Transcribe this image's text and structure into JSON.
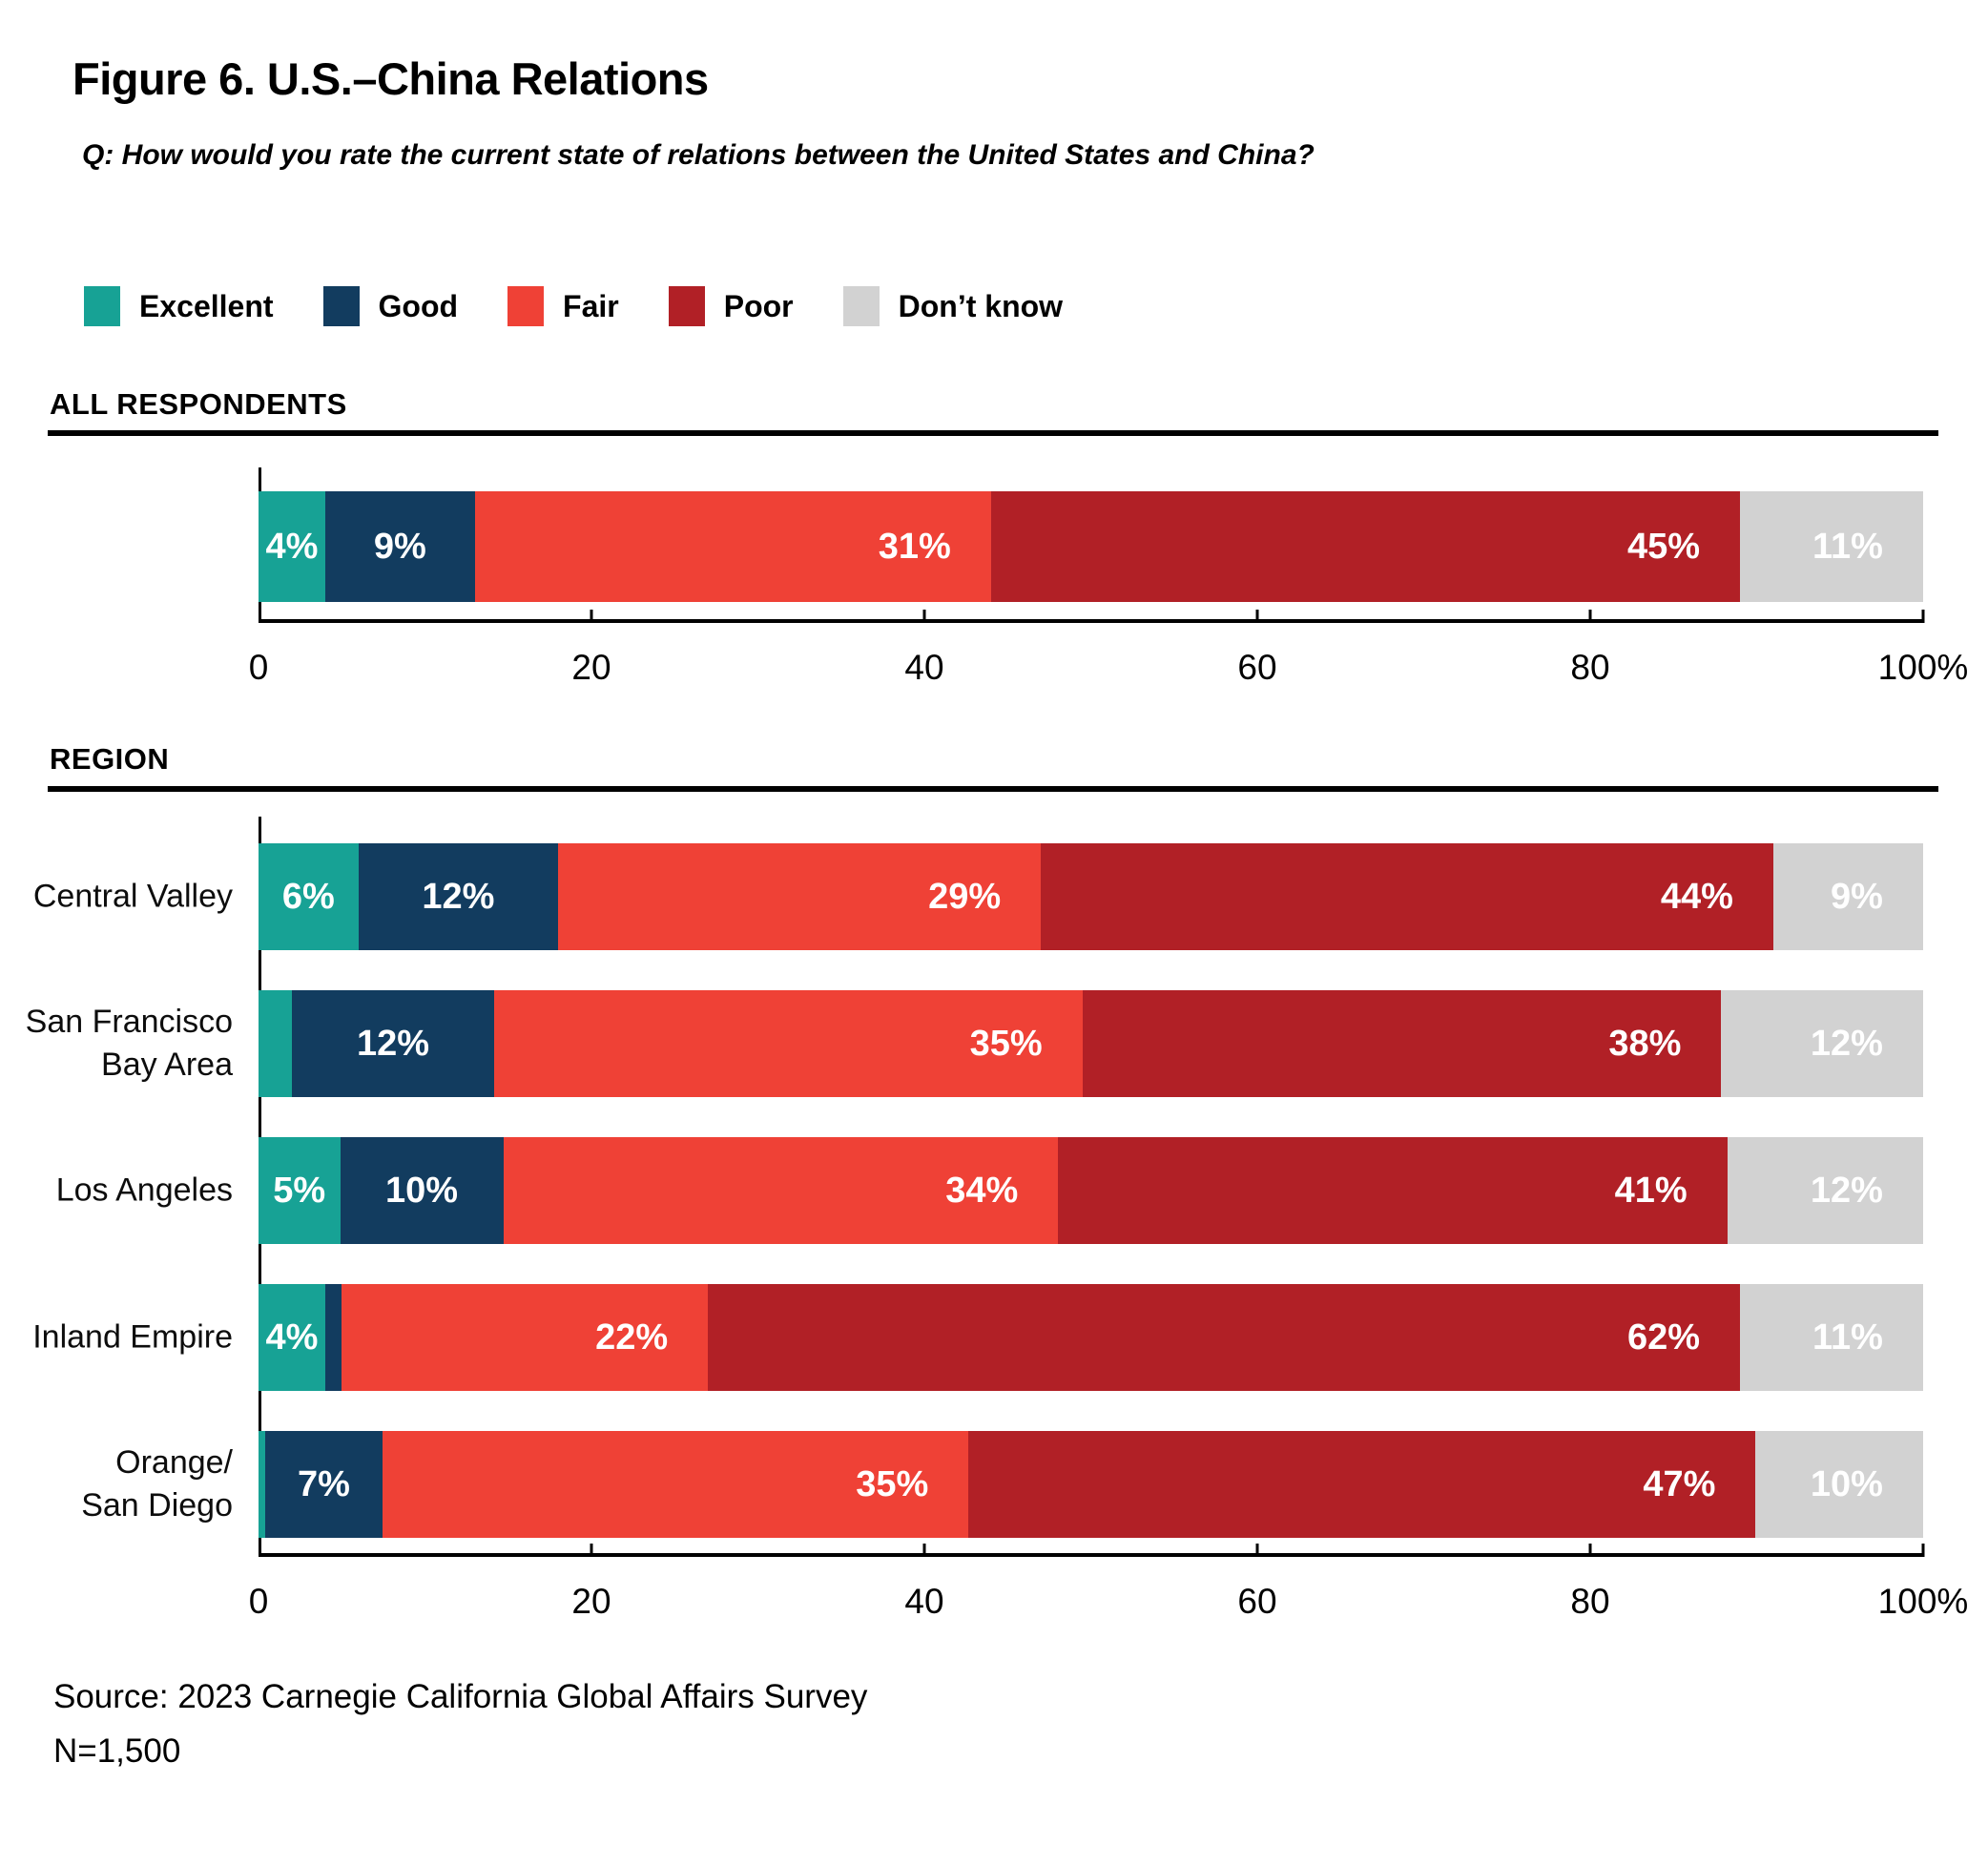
{
  "page": {
    "title": "Figure 6. U.S.–China Relations",
    "question": "Q: How would you rate the current state of relations between the United States and China?",
    "source_line": "Source: 2023 Carnegie California Global Affairs Survey",
    "n_line": "N=1,500"
  },
  "sections": {
    "all": {
      "label": "ALL RESPONDENTS"
    },
    "region": {
      "label": "REGION"
    }
  },
  "legend": {
    "items": [
      {
        "key": "excellent",
        "label": "Excellent",
        "color": "#17A295"
      },
      {
        "key": "good",
        "label": "Good",
        "color": "#123C5F"
      },
      {
        "key": "fair",
        "label": "Fair",
        "color": "#EF4136"
      },
      {
        "key": "poor",
        "label": "Poor",
        "color": "#B12026"
      },
      {
        "key": "dont_know",
        "label": "Don’t know",
        "color": "#D2D2D2"
      }
    ]
  },
  "axis": {
    "max": 100,
    "tick_values": [
      0,
      20,
      40,
      60,
      80,
      100
    ],
    "tick_labels": [
      "0",
      "20",
      "40",
      "60",
      "80",
      "100%"
    ]
  },
  "bars": {
    "all": [
      {
        "label": "",
        "segments": [
          {
            "key": "excellent",
            "w": 4,
            "label": "4%"
          },
          {
            "key": "good",
            "w": 9,
            "label": "9%"
          },
          {
            "key": "fair",
            "w": 31,
            "label": "31%"
          },
          {
            "key": "poor",
            "w": 45,
            "label": "45%"
          },
          {
            "key": "dont_know",
            "w": 11,
            "label": "11%"
          }
        ]
      }
    ],
    "region": [
      {
        "label": "Central Valley",
        "segments": [
          {
            "key": "excellent",
            "w": 6,
            "label": "6%"
          },
          {
            "key": "good",
            "w": 12,
            "label": "12%"
          },
          {
            "key": "fair",
            "w": 29,
            "label": "29%"
          },
          {
            "key": "poor",
            "w": 44,
            "label": "44%"
          },
          {
            "key": "dont_know",
            "w": 9,
            "label": "9%"
          }
        ]
      },
      {
        "label": "San Francisco\nBay Area",
        "segments": [
          {
            "key": "excellent",
            "w": 2,
            "label": ""
          },
          {
            "key": "good",
            "w": 12,
            "label": "12%"
          },
          {
            "key": "fair",
            "w": 35,
            "label": "35%"
          },
          {
            "key": "poor",
            "w": 38,
            "label": "38%"
          },
          {
            "key": "dont_know",
            "w": 12,
            "label": "12%"
          }
        ]
      },
      {
        "label": "Los Angeles",
        "segments": [
          {
            "key": "excellent",
            "w": 5,
            "label": "5%"
          },
          {
            "key": "good",
            "w": 10,
            "label": "10%"
          },
          {
            "key": "fair",
            "w": 34,
            "label": "34%"
          },
          {
            "key": "poor",
            "w": 41,
            "label": "41%"
          },
          {
            "key": "dont_know",
            "w": 12,
            "label": "12%"
          }
        ]
      },
      {
        "label": "Inland Empire",
        "segments": [
          {
            "key": "excellent",
            "w": 4,
            "label": "4%"
          },
          {
            "key": "good",
            "w": 1,
            "label": ""
          },
          {
            "key": "fair",
            "w": 22,
            "label": "22%"
          },
          {
            "key": "poor",
            "w": 62,
            "label": "62%"
          },
          {
            "key": "dont_know",
            "w": 11,
            "label": "11%"
          }
        ]
      },
      {
        "label": "Orange/\nSan Diego",
        "segments": [
          {
            "key": "excellent",
            "w": 0.4,
            "label": ""
          },
          {
            "key": "good",
            "w": 7,
            "label": "7%"
          },
          {
            "key": "fair",
            "w": 35,
            "label": "35%"
          },
          {
            "key": "poor",
            "w": 47,
            "label": "47%"
          },
          {
            "key": "dont_know",
            "w": 10,
            "label": "10%"
          }
        ]
      }
    ]
  },
  "chart_data": [
    {
      "type": "bar",
      "stacked": true,
      "orientation": "horizontal",
      "title": "Figure 6. U.S.–China Relations",
      "subtitle": "Q: How would you rate the current state of relations between the United States and China?",
      "group": "ALL RESPONDENTS",
      "categories": [
        "All respondents"
      ],
      "series": [
        {
          "name": "Excellent",
          "values": [
            4
          ]
        },
        {
          "name": "Good",
          "values": [
            9
          ]
        },
        {
          "name": "Fair",
          "values": [
            31
          ]
        },
        {
          "name": "Poor",
          "values": [
            45
          ]
        },
        {
          "name": "Don’t know",
          "values": [
            11
          ]
        }
      ],
      "xlim": [
        0,
        100
      ],
      "xticks": [
        0,
        20,
        40,
        60,
        80,
        100
      ],
      "legend_position": "top",
      "grid": false
    },
    {
      "type": "bar",
      "stacked": true,
      "orientation": "horizontal",
      "group": "REGION",
      "categories": [
        "Central Valley",
        "San Francisco Bay Area",
        "Los Angeles",
        "Inland Empire",
        "Orange/San Diego"
      ],
      "series": [
        {
          "name": "Excellent",
          "values": [
            6,
            2,
            5,
            4,
            0
          ]
        },
        {
          "name": "Good",
          "values": [
            12,
            12,
            10,
            1,
            7
          ]
        },
        {
          "name": "Fair",
          "values": [
            29,
            35,
            34,
            22,
            35
          ]
        },
        {
          "name": "Poor",
          "values": [
            44,
            38,
            41,
            62,
            47
          ]
        },
        {
          "name": "Don’t know",
          "values": [
            9,
            12,
            12,
            11,
            10
          ]
        }
      ],
      "xlim": [
        0,
        100
      ],
      "xticks": [
        0,
        20,
        40,
        60,
        80,
        100
      ],
      "grid": false,
      "source": "Source: 2023 Carnegie California Global Affairs Survey",
      "n": "N=1,500"
    }
  ]
}
